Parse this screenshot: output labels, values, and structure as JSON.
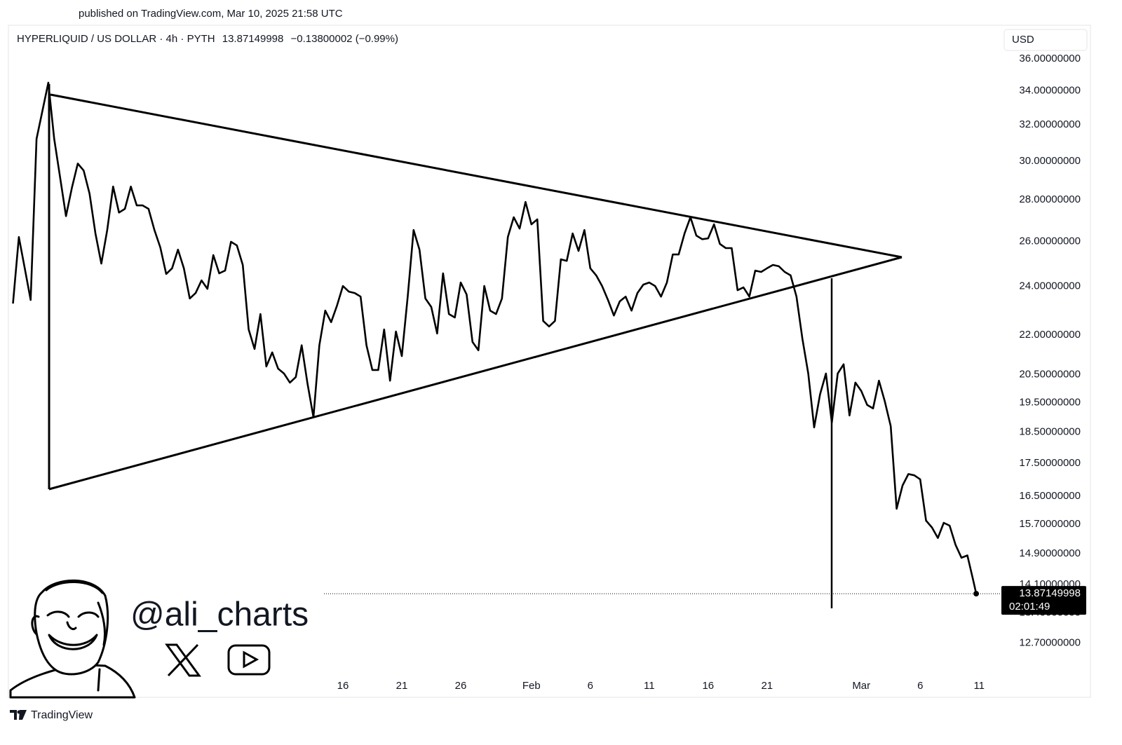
{
  "header": {
    "published": "published on TradingView.com, Mar 10, 2025 21:58 UTC"
  },
  "chart_data": {
    "type": "line",
    "symbol": "HYPERLIQUID / US DOLLAR · 4h · PYTH",
    "last": "13.87149998",
    "change": "−0.13800002 (−0.99%)",
    "currency": "USD",
    "countdown": "02:01:49",
    "log_scale": true,
    "grid": false,
    "x": [
      -12,
      -11.5,
      -11,
      -10.5,
      -10,
      -9.5,
      -9,
      -8.5,
      -8,
      -7.5,
      -7,
      -6.5,
      -6,
      -5.5,
      -5,
      -4.5,
      -4,
      -3.5,
      -3,
      -2.5,
      -2,
      -1.5,
      -1,
      -0.5,
      0,
      0.5,
      1,
      1.5,
      2,
      2.5,
      3,
      3.5,
      4,
      4.5,
      5,
      5.5,
      6,
      6.5,
      7,
      7.5,
      8,
      8.5,
      9,
      9.5,
      10,
      10.5,
      11,
      11.5,
      12,
      12.5,
      13,
      13.5,
      14,
      14.5,
      15,
      15.5,
      16,
      16.5,
      17,
      17.5,
      18,
      18.5,
      19,
      19.5,
      20,
      20.5,
      21,
      21.5,
      22,
      22.5,
      23,
      23.5,
      24,
      24.5,
      25,
      25.5,
      26,
      26.5,
      27,
      27.5,
      28,
      28.5,
      29,
      29.5,
      30,
      30.5,
      31,
      31.5,
      32,
      32.5,
      33,
      33.5,
      34,
      34.5,
      35,
      35.5,
      36,
      36.5,
      37,
      37.5,
      38,
      38.5,
      39,
      39.5,
      40,
      40.5,
      41,
      41.5,
      42,
      42.5,
      43,
      43.5,
      44,
      44.5,
      45,
      45.5,
      46,
      46.5,
      47,
      47.5,
      48,
      48.5,
      49,
      49.5,
      50,
      50.5,
      51,
      51.5,
      52,
      52.5,
      53,
      53.5,
      54,
      54.5,
      55,
      55.5,
      56,
      56.5,
      57,
      57.5,
      58,
      58.5,
      59,
      59.5,
      60,
      60.5,
      61,
      61.5,
      62,
      62.5,
      63,
      63.5,
      64,
      64.5,
      65,
      65.5,
      66,
      66.5,
      67,
      67.5,
      68,
      68.5,
      69,
      69.5,
      69.75
    ],
    "series": [
      {
        "name": "HYPERLIQUID / US DOLLAR",
        "color": "#000000",
        "values": [
          23.27,
          26.2,
          24.78,
          23.42,
          31.21,
          32.81,
          34.5,
          31.21,
          29.14,
          27.2,
          28.6,
          29.87,
          29.5,
          28.31,
          26.37,
          24.99,
          26.53,
          28.67,
          27.37,
          27.55,
          28.67,
          27.72,
          27.72,
          27.55,
          26.53,
          25.72,
          24.53,
          24.78,
          25.62,
          24.78,
          23.48,
          23.71,
          24.25,
          23.89,
          25.37,
          24.56,
          24.68,
          25.98,
          25.81,
          24.93,
          22.22,
          21.46,
          22.84,
          20.8,
          21.33,
          20.72,
          20.54,
          20.21,
          20.41,
          21.6,
          20.16,
          19.0,
          21.6,
          22.98,
          22.51,
          23.19,
          24.01,
          23.77,
          23.71,
          23.56,
          21.6,
          20.67,
          20.67,
          22.22,
          20.28,
          22.14,
          21.19,
          23.56,
          26.53,
          25.62,
          23.48,
          23.13,
          22.06,
          24.56,
          22.84,
          22.7,
          24.16,
          23.65,
          21.73,
          21.41,
          24.01,
          22.98,
          22.84,
          23.48,
          26.2,
          27.14,
          26.6,
          27.89,
          26.8,
          27.04,
          22.56,
          22.34,
          22.56,
          25.18,
          25.11,
          26.37,
          25.56,
          26.53,
          24.78,
          24.47,
          24.01,
          23.42,
          22.78,
          23.36,
          23.56,
          22.98,
          23.71,
          24.07,
          24.16,
          24.01,
          23.56,
          24.16,
          25.4,
          25.4,
          26.37,
          27.14,
          26.27,
          26.1,
          26.14,
          26.8,
          25.88,
          25.69,
          25.69,
          23.83,
          23.95,
          23.56,
          24.68,
          24.62,
          24.78,
          24.93,
          24.87,
          24.62,
          24.47,
          23.56,
          21.86,
          20.54,
          18.66,
          19.79,
          20.54,
          18.82,
          20.54,
          20.88,
          19.06,
          20.21,
          19.91,
          19.42,
          19.3,
          20.28,
          19.54,
          18.7,
          16.14,
          16.82,
          17.17,
          17.13,
          17.01,
          15.8,
          15.61,
          15.32,
          15.74,
          15.66,
          15.13,
          14.79,
          14.85,
          14.2,
          13.87149998
        ]
      }
    ],
    "xlim": [
      -12.27,
      71.83
    ],
    "xticks": [
      16,
      21,
      26,
      {
        "value": 32,
        "label": "Feb"
      },
      {
        "value": 37,
        "label": "6"
      },
      {
        "value": 42,
        "label": "11"
      },
      {
        "value": 47,
        "label": "16"
      },
      {
        "value": 52,
        "label": "21"
      },
      {
        "value": 60,
        "label": "Mar"
      },
      {
        "value": 65,
        "label": "6"
      },
      {
        "value": 70,
        "label": "11"
      }
    ],
    "ylim": [
      11.53,
      38.13
    ],
    "yticks": [
      {
        "value": 36,
        "label": "36.00000000"
      },
      {
        "value": 34,
        "label": "34.00000000"
      },
      {
        "value": 32,
        "label": "32.00000000"
      },
      {
        "value": 30,
        "label": "30.00000000"
      },
      {
        "value": 28,
        "label": "28.00000000"
      },
      {
        "value": 26,
        "label": "26.00000000"
      },
      {
        "value": 24,
        "label": "24.00000000"
      },
      {
        "value": 22,
        "label": "22.00000000"
      },
      {
        "value": 20.5,
        "label": "20.50000000"
      },
      {
        "value": 19.5,
        "label": "19.50000000"
      },
      {
        "value": 18.5,
        "label": "18.50000000"
      },
      {
        "value": 17.5,
        "label": "17.50000000"
      },
      {
        "value": 16.5,
        "label": "16.50000000"
      },
      {
        "value": 15.7,
        "label": "15.70000000"
      },
      {
        "value": 14.9,
        "label": "14.90000000"
      },
      {
        "value": 14.1,
        "label": "14.10000000"
      },
      {
        "value": 13.4,
        "label": "13.40000000"
      },
      {
        "value": 12.7,
        "label": "12.70000000"
      }
    ]
  },
  "watermark": {
    "handle": "@ali_charts"
  },
  "footer": {
    "brand": "TradingView"
  }
}
